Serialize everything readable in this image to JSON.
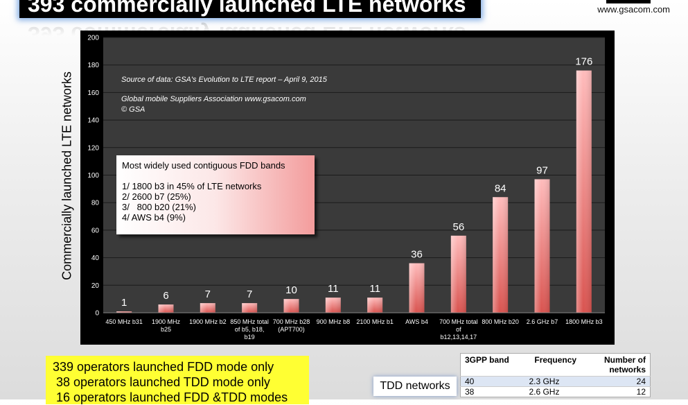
{
  "header": {
    "title": "393 commercially launched LTE networks",
    "site": "www.gsacom.com"
  },
  "notes": {
    "source": "Source of data: GSA's Evolution to LTE report – April 9, 2015",
    "association": "Global mobile Suppliers Association www.gsacom.com",
    "copyright": "© GSA"
  },
  "info_box": {
    "heading": "Most widely used contiguous FDD bands",
    "line1": "1/ 1800 b3 in 45% of LTE networks",
    "line2": "2/ 2600 b7 (25%)",
    "line3": "3/   800 b20 (21%)",
    "line4": "4/ AWS b4 (9%)"
  },
  "operators": {
    "line1": "339 operators launched FDD mode only",
    "line2": " 38 operators launched TDD mode only",
    "line3": " 16 operators launched FDD &TDD modes"
  },
  "tdd": {
    "label": "TDD networks",
    "headers": [
      "3GPP band",
      "Frequency",
      "Number of networks"
    ],
    "rows": [
      {
        "band": "40",
        "frequency": "2.3 GHz",
        "networks": "24"
      },
      {
        "band": "38",
        "frequency": "2.6 GHz",
        "networks": "12"
      }
    ]
  },
  "colors": {
    "bar_top": "#ffbcbc",
    "bar_bottom": "#d9534f",
    "plot_bg": "#3a3a3a",
    "panel_bg": "#000000",
    "ops_box": "#ffff33"
  },
  "chart_data": {
    "type": "bar",
    "ylabel": "Commercially launched LTE networks",
    "ylim": [
      0,
      200
    ],
    "yticks": [
      0,
      20,
      40,
      60,
      80,
      100,
      120,
      140,
      160,
      180,
      200
    ],
    "grid": true,
    "categories": [
      [
        "450 MHz b31"
      ],
      [
        "1900 MHz",
        "b25"
      ],
      [
        "1900 MHz b2"
      ],
      [
        "850 MHz total",
        "of b5, b18,",
        "b19"
      ],
      [
        "700 MHz b28",
        "(APT700)"
      ],
      [
        "900 MHz b8"
      ],
      [
        "2100 MHz b1"
      ],
      [
        "AWS b4"
      ],
      [
        "700 MHz total",
        "of",
        "b12,13,14,17"
      ],
      [
        "800 MHz b20"
      ],
      [
        "2.6 GHz b7"
      ],
      [
        "1800 MHz b3"
      ]
    ],
    "values": [
      1,
      6,
      7,
      7,
      10,
      11,
      11,
      36,
      56,
      84,
      97,
      176
    ]
  }
}
